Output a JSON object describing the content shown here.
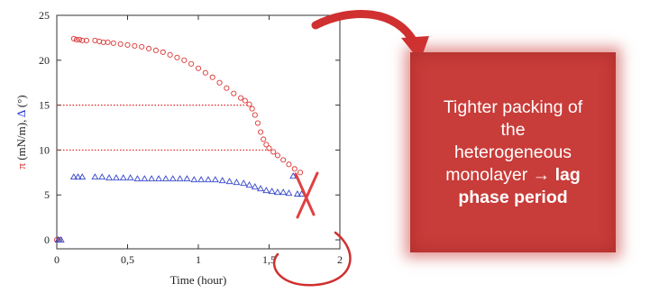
{
  "chart_data": {
    "type": "scatter",
    "xlabel": "Time (hour)",
    "ylabel_parts": [
      {
        "text": "π",
        "color": "#cc2222"
      },
      {
        "text": " (mN/m), ",
        "color": "#222222"
      },
      {
        "text": "Δ",
        "color": "#2233cc"
      },
      {
        "text": " (°)",
        "color": "#222222"
      }
    ],
    "xlim": [
      0,
      2
    ],
    "ylim": [
      -1,
      25
    ],
    "xticks": [
      {
        "value": 0,
        "label": "0"
      },
      {
        "value": 0.5,
        "label": "0,5"
      },
      {
        "value": 1,
        "label": "1"
      },
      {
        "value": 1.5,
        "label": "1,5"
      },
      {
        "value": 2,
        "label": "2"
      }
    ],
    "yticks": [
      {
        "value": 0,
        "label": "0"
      },
      {
        "value": 5,
        "label": "5"
      },
      {
        "value": 10,
        "label": "10"
      },
      {
        "value": 15,
        "label": "15"
      },
      {
        "value": 20,
        "label": "20"
      },
      {
        "value": 25,
        "label": "25"
      }
    ],
    "reference_lines": [
      {
        "y": 15,
        "color": "#dd2222",
        "x_range": [
          0,
          1.35
        ]
      },
      {
        "y": 10,
        "color": "#dd2222",
        "x_range": [
          0,
          1.5
        ]
      }
    ],
    "series": [
      {
        "marker": "circle",
        "color": "#dd3333",
        "x": [
          0.12,
          0.14,
          0.16,
          0.18,
          0.21,
          0.27,
          0.3,
          0.33,
          0.36,
          0.4,
          0.45,
          0.5,
          0.55,
          0.6,
          0.65,
          0.7,
          0.75,
          0.8,
          0.85,
          0.9,
          0.95,
          1.0,
          1.05,
          1.1,
          1.15,
          1.2,
          1.25,
          1.3,
          1.33,
          1.36,
          1.38,
          1.4,
          1.42,
          1.44,
          1.46,
          1.48,
          1.5,
          1.53,
          1.56,
          1.6,
          1.64,
          1.68,
          1.72
        ],
        "y": [
          22.4,
          22.3,
          22.3,
          22.2,
          22.2,
          22.2,
          22.1,
          22.0,
          22.0,
          21.9,
          21.8,
          21.7,
          21.6,
          21.5,
          21.3,
          21.1,
          20.9,
          20.6,
          20.3,
          20.0,
          19.6,
          19.1,
          18.6,
          18.1,
          17.5,
          16.9,
          16.3,
          15.8,
          15.5,
          15.1,
          14.6,
          13.9,
          13.0,
          12.0,
          11.2,
          10.6,
          10.2,
          9.8,
          9.4,
          8.9,
          8.4,
          7.9,
          7.5
        ]
      },
      {
        "marker": "triangle",
        "color": "#3344cc",
        "x": [
          0.12,
          0.15,
          0.18,
          0.27,
          0.32,
          0.37,
          0.42,
          0.47,
          0.52,
          0.57,
          0.62,
          0.67,
          0.72,
          0.77,
          0.82,
          0.87,
          0.92,
          0.97,
          1.02,
          1.07,
          1.12,
          1.17,
          1.22,
          1.27,
          1.32,
          1.36,
          1.4,
          1.44,
          1.48,
          1.52,
          1.56,
          1.6,
          1.64,
          1.67,
          1.7,
          1.73
        ],
        "y": [
          7.0,
          7.0,
          7.0,
          7.0,
          7.0,
          6.9,
          6.9,
          6.9,
          6.9,
          6.8,
          6.8,
          6.8,
          6.8,
          6.8,
          6.8,
          6.8,
          6.8,
          6.7,
          6.7,
          6.7,
          6.7,
          6.6,
          6.5,
          6.4,
          6.3,
          6.1,
          5.9,
          5.7,
          5.5,
          5.4,
          5.3,
          5.3,
          5.2,
          7.1,
          5.1,
          5.1
        ]
      },
      {
        "marker": "circle",
        "color": "#dd3333",
        "x": [
          0.0,
          0.02
        ],
        "y": [
          0.0,
          0.0
        ]
      },
      {
        "marker": "triangle",
        "color": "#3344cc",
        "x": [
          0.01,
          0.03
        ],
        "y": [
          0.0,
          0.0
        ]
      }
    ]
  },
  "callout": {
    "line1": "Tighter packing of",
    "line2": "the",
    "line3": "heterogeneous",
    "line4_prefix": "monolayer",
    "arrow": "→",
    "line4_bold": "lag",
    "line5_bold": "phase period"
  },
  "annotations": {
    "color": "#d03030"
  }
}
